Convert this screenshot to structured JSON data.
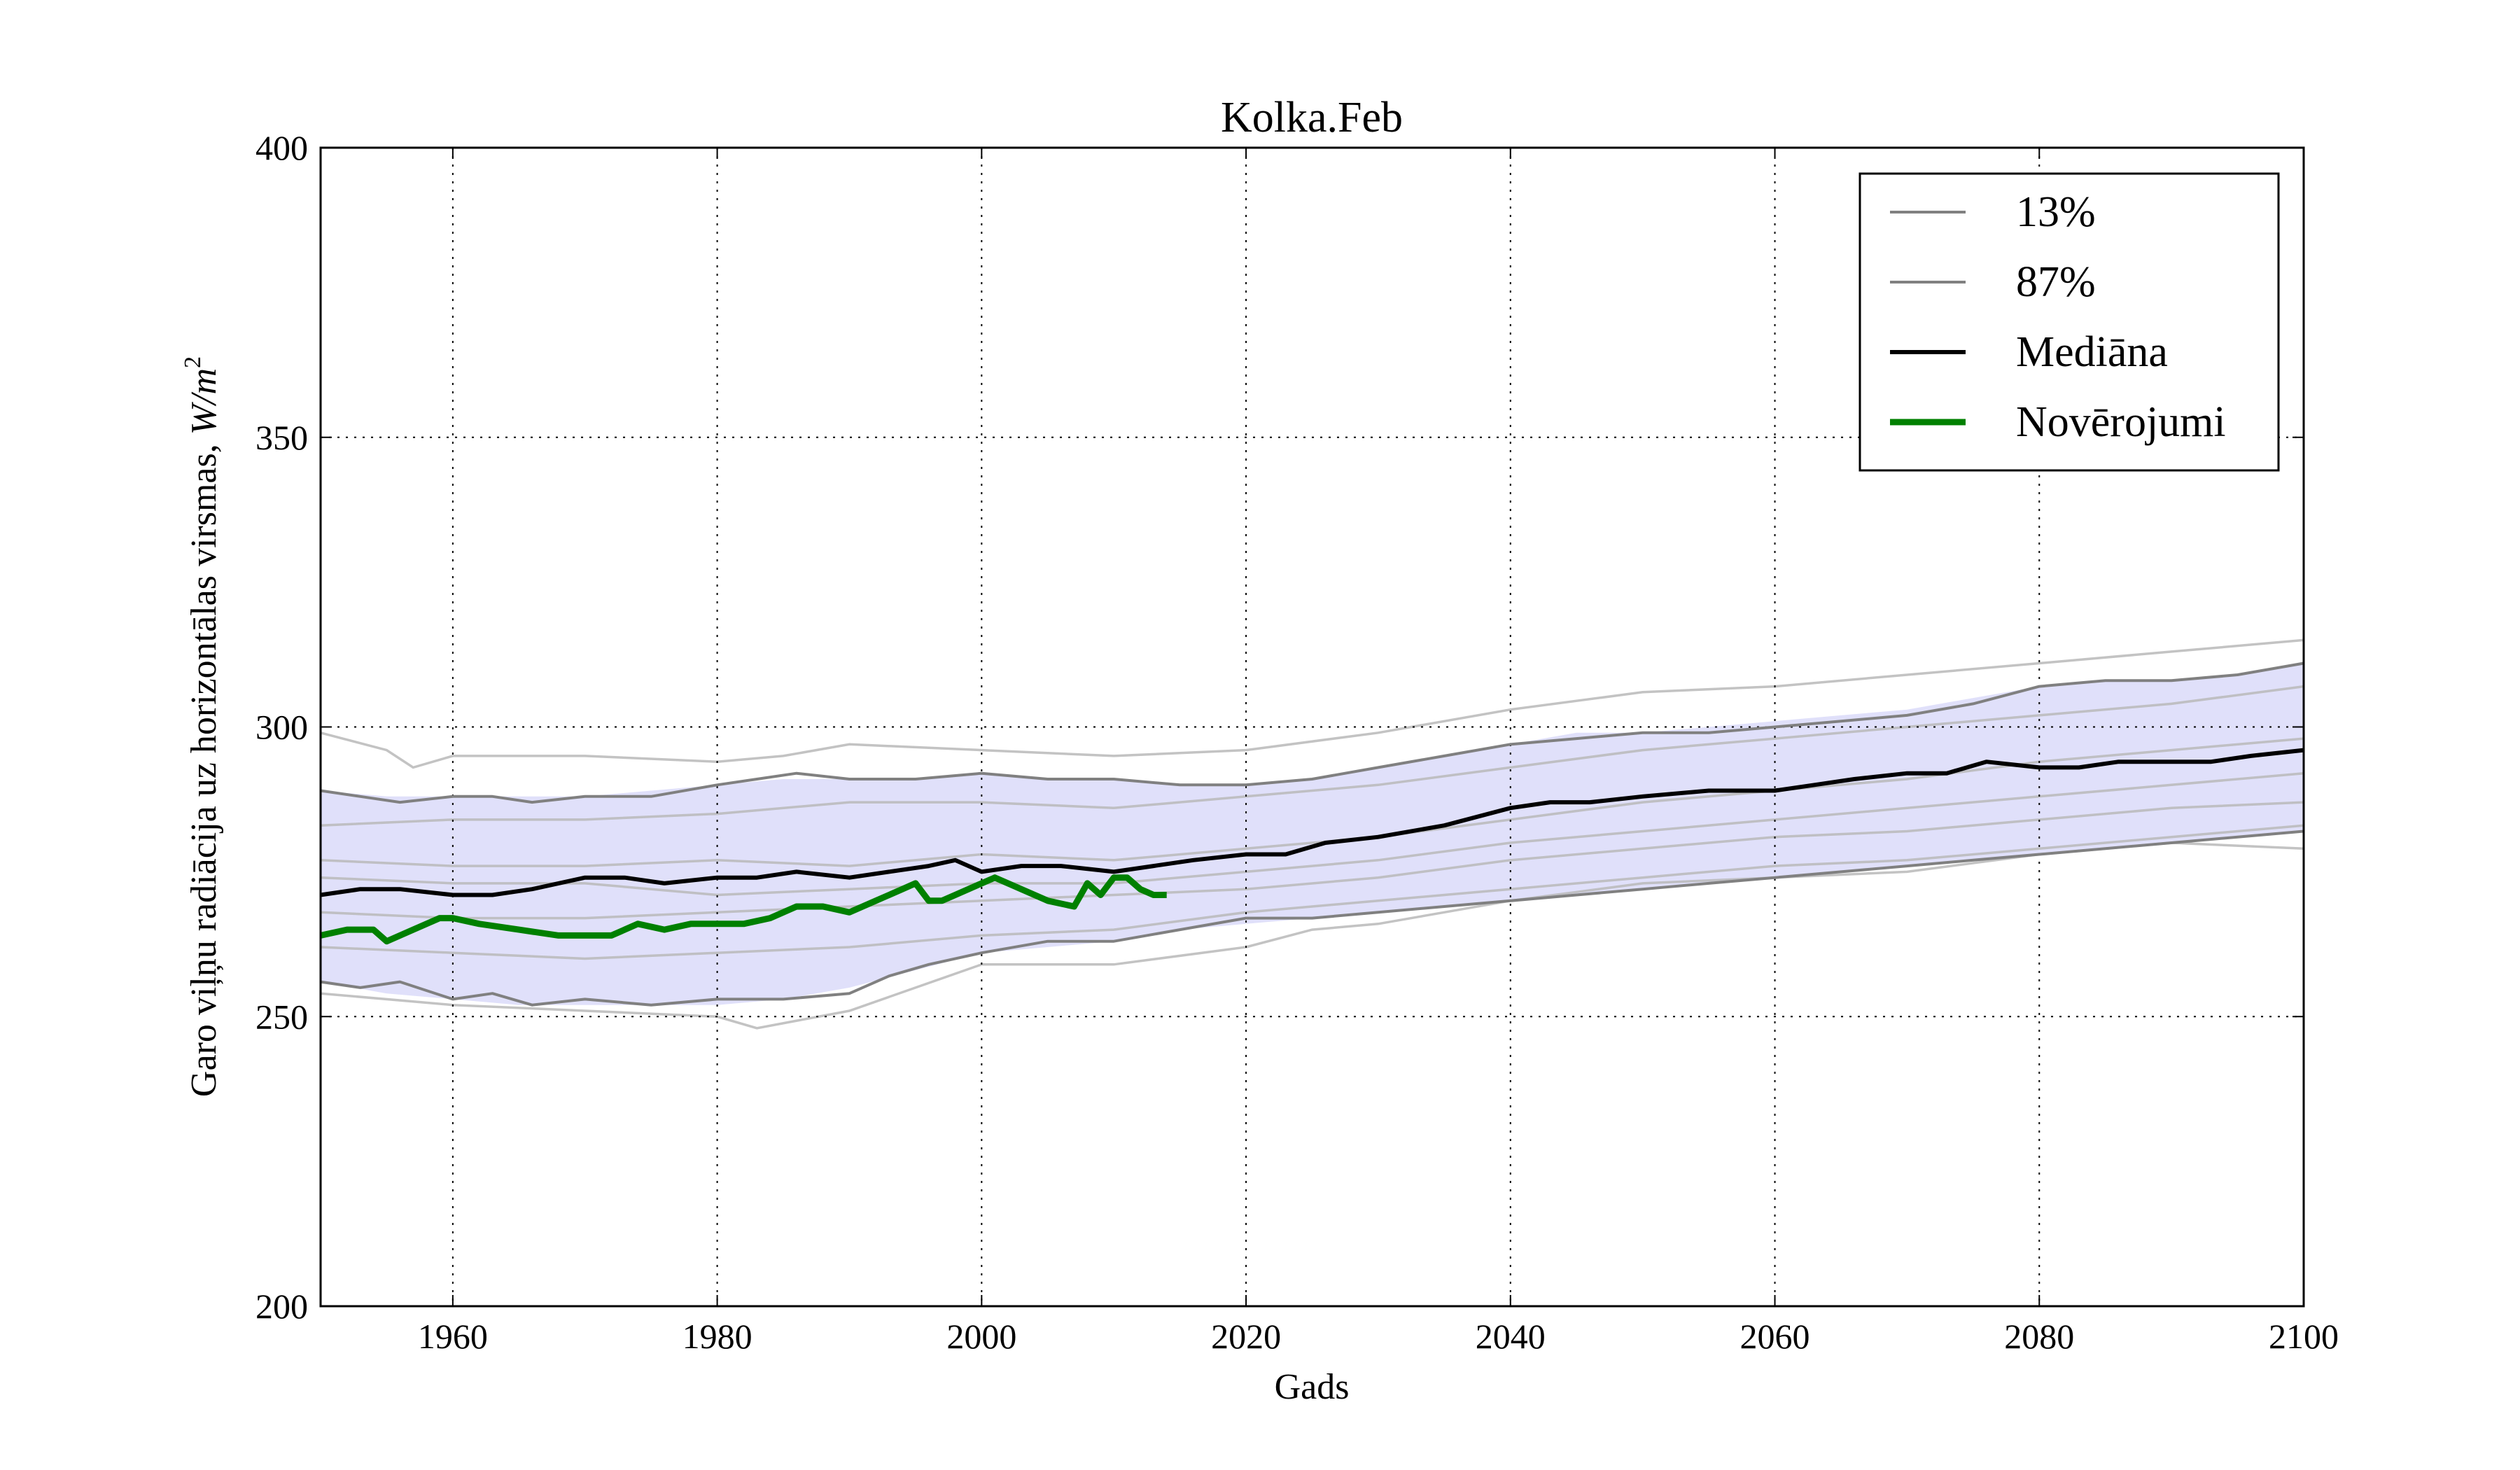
{
  "chart_data": {
    "type": "line",
    "title": "Kolka.Feb",
    "xlabel": "Gads",
    "ylabel": "Garo viļņu radiācija uz horizontālas virsmas, ",
    "ylabel_unit": "W/m",
    "ylabel_unit_sup": "2",
    "xlim": [
      1950,
      2100
    ],
    "ylim": [
      200,
      400
    ],
    "xticks": [
      1960,
      1980,
      2000,
      2020,
      2040,
      2060,
      2080,
      2100
    ],
    "yticks": [
      200,
      250,
      300,
      350,
      400
    ],
    "xtick_labels": [
      "1960",
      "1980",
      "2000",
      "2020",
      "2040",
      "2060",
      "2080",
      "2100"
    ],
    "ytick_labels": [
      "200",
      "250",
      "300",
      "350",
      "400"
    ],
    "grid": true,
    "legend_position": "top-right",
    "colors": {
      "band": "#e0e0fa",
      "p13": "#808080",
      "p87": "#808080",
      "median": "#000000",
      "observations": "#008000",
      "ensemble": "#b8b8b8"
    },
    "legend": [
      {
        "label": "13%",
        "key": "p13"
      },
      {
        "label": "87%",
        "key": "p87"
      },
      {
        "label": "Mediāna",
        "key": "median"
      },
      {
        "label": "Novērojumi",
        "key": "observations"
      }
    ],
    "band": {
      "x": [
        1950,
        1955,
        1960,
        1965,
        1970,
        1975,
        1980,
        1985,
        1990,
        1995,
        2000,
        2005,
        2010,
        2015,
        2020,
        2025,
        2030,
        2035,
        2040,
        2045,
        2050,
        2055,
        2060,
        2065,
        2070,
        2075,
        2080,
        2085,
        2090,
        2095,
        2100
      ],
      "lower": [
        256,
        254,
        253,
        252,
        252,
        252,
        252,
        253,
        255,
        258,
        261,
        262,
        263,
        265,
        266,
        267,
        268,
        269,
        270,
        271,
        272,
        273,
        274,
        275,
        276,
        277,
        278,
        279,
        280,
        281,
        282
      ],
      "upper": [
        289,
        288,
        288,
        288,
        288,
        289,
        290,
        291,
        291,
        291,
        292,
        291,
        291,
        290,
        290,
        291,
        293,
        295,
        297,
        299,
        299,
        300,
        301,
        302,
        303,
        305,
        307,
        308,
        308,
        309,
        311
      ]
    },
    "series": [
      {
        "key": "p13",
        "name": "13%",
        "x": [
          1950,
          1953,
          1956,
          1960,
          1963,
          1966,
          1970,
          1975,
          1980,
          1985,
          1990,
          1993,
          1996,
          2000,
          2005,
          2010,
          2015,
          2020,
          2025,
          2030,
          2035,
          2040,
          2045,
          2050,
          2055,
          2060,
          2065,
          2070,
          2075,
          2080,
          2085,
          2090,
          2095,
          2100
        ],
        "y": [
          256,
          255,
          256,
          253,
          254,
          252,
          253,
          252,
          253,
          253,
          254,
          257,
          259,
          261,
          263,
          263,
          265,
          267,
          267,
          268,
          269,
          270,
          271,
          272,
          273,
          274,
          275,
          276,
          277,
          278,
          279,
          280,
          281,
          282
        ]
      },
      {
        "key": "p87",
        "name": "87%",
        "x": [
          1950,
          1953,
          1956,
          1960,
          1963,
          1966,
          1970,
          1975,
          1980,
          1983,
          1986,
          1990,
          1995,
          2000,
          2005,
          2010,
          2015,
          2020,
          2025,
          2030,
          2035,
          2040,
          2045,
          2050,
          2055,
          2060,
          2065,
          2070,
          2075,
          2080,
          2085,
          2090,
          2095,
          2100
        ],
        "y": [
          289,
          288,
          287,
          288,
          288,
          287,
          288,
          288,
          290,
          291,
          292,
          291,
          291,
          292,
          291,
          291,
          290,
          290,
          291,
          293,
          295,
          297,
          298,
          299,
          299,
          300,
          301,
          302,
          304,
          307,
          308,
          308,
          309,
          311
        ]
      },
      {
        "key": "median",
        "name": "Mediāna",
        "x": [
          1950,
          1953,
          1956,
          1960,
          1963,
          1966,
          1970,
          1973,
          1976,
          1980,
          1983,
          1986,
          1990,
          1993,
          1996,
          1998,
          2000,
          2003,
          2006,
          2010,
          2013,
          2016,
          2020,
          2023,
          2026,
          2030,
          2035,
          2040,
          2043,
          2046,
          2050,
          2055,
          2060,
          2063,
          2066,
          2070,
          2073,
          2076,
          2080,
          2083,
          2086,
          2090,
          2093,
          2096,
          2100
        ],
        "y": [
          271,
          272,
          272,
          271,
          271,
          272,
          274,
          274,
          273,
          274,
          274,
          275,
          274,
          275,
          276,
          277,
          275,
          276,
          276,
          275,
          276,
          277,
          278,
          278,
          280,
          281,
          283,
          286,
          287,
          287,
          288,
          289,
          289,
          290,
          291,
          292,
          292,
          294,
          293,
          293,
          294,
          294,
          294,
          295,
          296
        ]
      },
      {
        "key": "observations",
        "name": "Novērojumi",
        "x": [
          1950,
          1952,
          1954,
          1955,
          1957,
          1959,
          1960,
          1962,
          1965,
          1968,
          1970,
          1972,
          1974,
          1976,
          1978,
          1980,
          1982,
          1984,
          1986,
          1988,
          1990,
          1992,
          1994,
          1995,
          1996,
          1997,
          1998,
          1999,
          2001,
          2003,
          2005,
          2007,
          2008,
          2009,
          2010,
          2011,
          2012,
          2013,
          2014
        ],
        "y": [
          264,
          265,
          265,
          263,
          265,
          267,
          267,
          266,
          265,
          264,
          264,
          264,
          266,
          265,
          266,
          266,
          266,
          267,
          269,
          269,
          268,
          270,
          272,
          273,
          270,
          270,
          271,
          272,
          274,
          272,
          270,
          269,
          273,
          271,
          274,
          274,
          272,
          271,
          271
        ]
      }
    ],
    "ensemble": [
      {
        "x": [
          1950,
          1955,
          1957,
          1960,
          1970,
          1980,
          1985,
          1990,
          2000,
          2010,
          2020,
          2030,
          2040,
          2050,
          2060,
          2070,
          2080,
          2090,
          2100
        ],
        "y": [
          299,
          296,
          293,
          295,
          295,
          294,
          295,
          297,
          296,
          295,
          296,
          299,
          303,
          306,
          307,
          309,
          311,
          313,
          315
        ]
      },
      {
        "x": [
          1950,
          1960,
          1970,
          1980,
          1990,
          2000,
          2010,
          2020,
          2030,
          2040,
          2050,
          2060,
          2070,
          2080,
          2090,
          2100
        ],
        "y": [
          283,
          284,
          284,
          285,
          287,
          287,
          286,
          288,
          290,
          293,
          296,
          298,
          300,
          302,
          304,
          307
        ]
      },
      {
        "x": [
          1950,
          1960,
          1970,
          1980,
          1990,
          2000,
          2010,
          2020,
          2030,
          2040,
          2050,
          2060,
          2070,
          2080,
          2090,
          2100
        ],
        "y": [
          277,
          276,
          276,
          277,
          276,
          278,
          277,
          279,
          281,
          284,
          287,
          289,
          291,
          294,
          296,
          298
        ]
      },
      {
        "x": [
          1950,
          1960,
          1970,
          1980,
          1990,
          2000,
          2010,
          2020,
          2030,
          2040,
          2050,
          2060,
          2070,
          2080,
          2090,
          2100
        ],
        "y": [
          274,
          273,
          273,
          271,
          272,
          273,
          273,
          275,
          277,
          280,
          282,
          284,
          286,
          288,
          290,
          292
        ]
      },
      {
        "x": [
          1950,
          1960,
          1970,
          1980,
          1990,
          2000,
          2010,
          2020,
          2030,
          2040,
          2050,
          2060,
          2070,
          2080,
          2090,
          2100
        ],
        "y": [
          268,
          267,
          267,
          268,
          269,
          270,
          271,
          272,
          274,
          277,
          279,
          281,
          282,
          284,
          286,
          287
        ]
      },
      {
        "x": [
          1950,
          1960,
          1970,
          1980,
          1990,
          2000,
          2010,
          2020,
          2030,
          2040,
          2050,
          2060,
          2070,
          2080,
          2090,
          2100
        ],
        "y": [
          262,
          261,
          260,
          261,
          262,
          264,
          265,
          268,
          270,
          272,
          274,
          276,
          277,
          279,
          281,
          283
        ]
      },
      {
        "x": [
          1950,
          1960,
          1970,
          1980,
          1983,
          1990,
          2000,
          2010,
          2020,
          2025,
          2030,
          2040,
          2050,
          2060,
          2070,
          2080,
          2090,
          2100
        ],
        "y": [
          254,
          252,
          251,
          250,
          248,
          251,
          259,
          259,
          262,
          265,
          266,
          270,
          273,
          274,
          275,
          278,
          280,
          279
        ]
      }
    ]
  }
}
